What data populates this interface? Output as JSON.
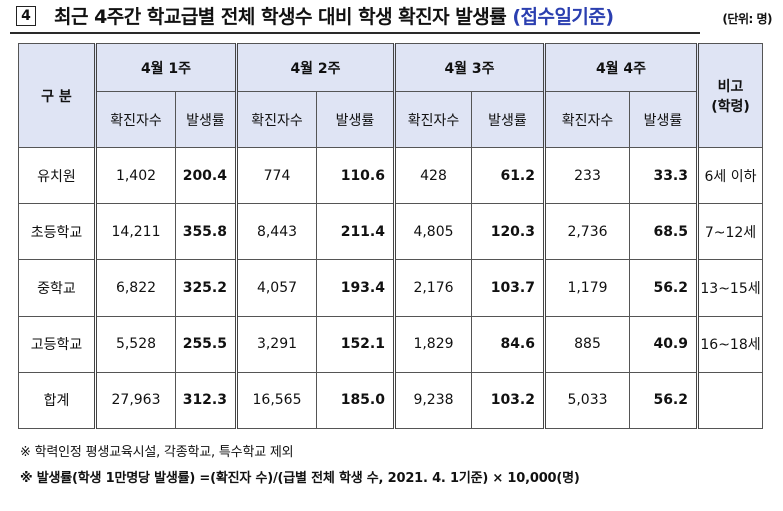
{
  "title": {
    "number": "4",
    "text": "최근 4주간 학교급별 전체 학생수 대비 학생 확진자 발생률",
    "accent": "(접수일기준)",
    "unit": "(단위: 명)"
  },
  "table": {
    "category_header": "구 분",
    "remark_header_line1": "비고",
    "remark_header_line2": "(학령)",
    "weeks": [
      "4월 1주",
      "4월 2주",
      "4월 3주",
      "4월 4주"
    ],
    "sub_headers": {
      "count": "확진자수",
      "rate": "발생률"
    },
    "rows": [
      {
        "name": "유치원",
        "counts": [
          "1,402",
          "774",
          "428",
          "233"
        ],
        "rates": [
          "200.4",
          "110.6",
          "61.2",
          "33.3"
        ],
        "remark": "6세 이하"
      },
      {
        "name": "초등학교",
        "counts": [
          "14,211",
          "8,443",
          "4,805",
          "2,736"
        ],
        "rates": [
          "355.8",
          "211.4",
          "120.3",
          "68.5"
        ],
        "remark": "7~12세"
      },
      {
        "name": "중학교",
        "counts": [
          "6,822",
          "4,057",
          "2,176",
          "1,179"
        ],
        "rates": [
          "325.2",
          "193.4",
          "103.7",
          "56.2"
        ],
        "remark": "13~15세"
      },
      {
        "name": "고등학교",
        "counts": [
          "5,528",
          "3,291",
          "1,829",
          "885"
        ],
        "rates": [
          "255.5",
          "152.1",
          "84.6",
          "40.9"
        ],
        "remark": "16~18세"
      },
      {
        "name": "합계",
        "counts": [
          "27,963",
          "16,565",
          "9,238",
          "5,033"
        ],
        "rates": [
          "312.3",
          "185.0",
          "103.2",
          "56.2"
        ],
        "remark": ""
      }
    ]
  },
  "notes": [
    "※ 학력인정 평생교육시설, 각종학교, 특수학교 제외",
    "※ 발생률(학생 1만명당 발생률) =(확진자 수)/(급별 전체 학생 수, 2021. 4. 1기준) × 10,000(명)"
  ],
  "colors": {
    "header_bg": "#dfe4f4",
    "accent": "#2b3fb0"
  }
}
